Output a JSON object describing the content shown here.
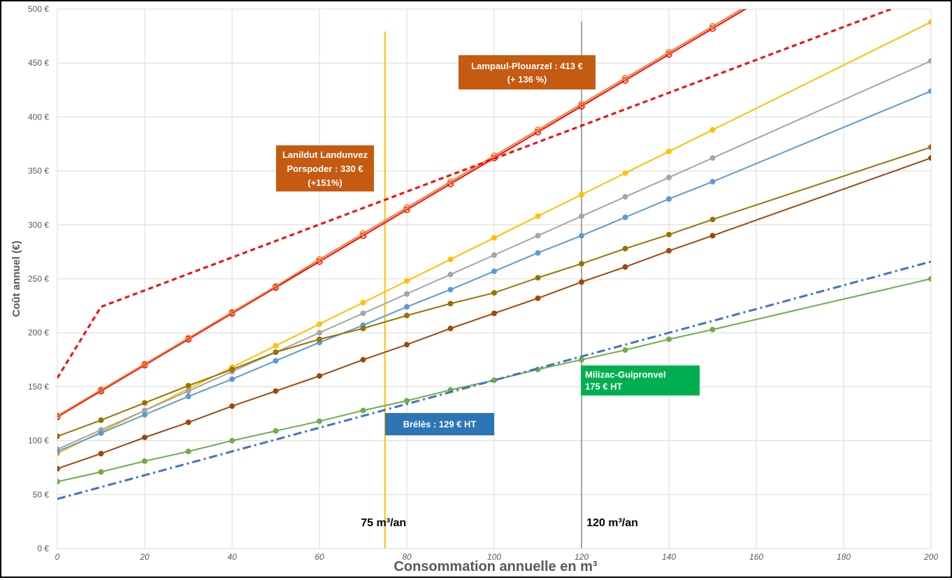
{
  "chart_data": {
    "type": "line",
    "xlabel": "Consommation annuelle en m³",
    "ylabel": "Coût annuel (€)",
    "xlim": [
      0,
      200
    ],
    "ylim": [
      0,
      500
    ],
    "x_ticks": [
      "0",
      "20",
      "40",
      "60",
      "80",
      "100",
      "120",
      "140",
      "160",
      "180",
      "200"
    ],
    "y_ticks": [
      "0 €",
      "50 €",
      "100 €",
      "150 €",
      "200 €",
      "250 €",
      "300 €",
      "350 €",
      "400 €",
      "450 €",
      "500 €"
    ],
    "grid": true,
    "series": [
      {
        "color": "#ff0000",
        "style": "solid",
        "marker": "open-circle",
        "x": [
          0,
          10,
          20,
          30,
          40,
          50,
          60,
          70,
          80,
          90,
          100,
          110,
          120,
          130,
          140,
          150,
          160
        ],
        "y": [
          122,
          146,
          170,
          194,
          218,
          242,
          266,
          290,
          314,
          338,
          362,
          386,
          410,
          434,
          458,
          482,
          506
        ]
      },
      {
        "color": "#ed7d31",
        "style": "solid",
        "marker": "open-circle",
        "x": [
          0,
          10,
          20,
          30,
          40,
          50,
          60,
          70,
          80,
          90,
          100,
          110,
          120,
          130,
          140,
          150,
          160
        ],
        "y": [
          123,
          147,
          171,
          195,
          219,
          243,
          268,
          292,
          316,
          340,
          364,
          388,
          412,
          436,
          460,
          484,
          508
        ]
      },
      {
        "color": "#ff0000",
        "style": "dashed",
        "marker": "none",
        "x": [
          0,
          10,
          200
        ],
        "y": [
          158,
          224,
          514
        ]
      },
      {
        "color": "#ffc000",
        "style": "solid",
        "marker": "dot",
        "x": [
          0,
          10,
          20,
          30,
          40,
          50,
          60,
          70,
          80,
          90,
          100,
          110,
          120,
          130,
          140,
          150,
          200
        ],
        "y": [
          88,
          108,
          128,
          148,
          168,
          188,
          208,
          228,
          248,
          268,
          288,
          308,
          328,
          348,
          368,
          388,
          488
        ]
      },
      {
        "color": "#a5a5a5",
        "style": "solid",
        "marker": "dot",
        "x": [
          0,
          10,
          20,
          30,
          40,
          50,
          60,
          70,
          80,
          90,
          100,
          110,
          120,
          130,
          140,
          150,
          200
        ],
        "y": [
          92,
          110,
          128,
          146,
          164,
          182,
          200,
          218,
          236,
          254,
          272,
          290,
          308,
          326,
          344,
          362,
          452
        ]
      },
      {
        "color": "#5b9bd5",
        "style": "solid",
        "marker": "dot",
        "x": [
          0,
          10,
          20,
          30,
          40,
          50,
          60,
          70,
          80,
          90,
          100,
          110,
          120,
          130,
          140,
          150,
          200
        ],
        "y": [
          90,
          107,
          124,
          141,
          157,
          174,
          191,
          207,
          224,
          240,
          257,
          274,
          290,
          307,
          324,
          340,
          424
        ]
      },
      {
        "color": "#997300",
        "style": "solid",
        "marker": "dot",
        "x": [
          0,
          10,
          20,
          30,
          40,
          50,
          60,
          70,
          80,
          90,
          100,
          110,
          120,
          130,
          140,
          150,
          200
        ],
        "y": [
          104,
          119,
          135,
          151,
          166,
          182,
          194,
          204,
          216,
          227,
          237,
          251,
          264,
          278,
          291,
          305,
          372
        ]
      },
      {
        "color": "#9e480e",
        "style": "solid",
        "marker": "dot",
        "x": [
          0,
          10,
          20,
          30,
          40,
          50,
          60,
          70,
          80,
          90,
          100,
          110,
          120,
          130,
          140,
          150,
          200
        ],
        "y": [
          74,
          88,
          103,
          117,
          132,
          146,
          160,
          175,
          189,
          204,
          218,
          232,
          247,
          261,
          276,
          290,
          362
        ]
      },
      {
        "color": "#70ad47",
        "style": "solid",
        "marker": "dot",
        "x": [
          0,
          10,
          20,
          30,
          40,
          50,
          60,
          70,
          80,
          90,
          100,
          110,
          120,
          130,
          140,
          150,
          200
        ],
        "y": [
          62,
          71,
          81,
          90,
          100,
          109,
          118,
          128,
          137,
          147,
          156,
          166,
          175,
          184,
          194,
          203,
          250
        ]
      },
      {
        "color": "#4472c4",
        "style": "dashdot",
        "marker": "none",
        "x": [
          0,
          200
        ],
        "y": [
          46,
          266
        ]
      }
    ],
    "vlines": [
      {
        "x": 75,
        "color": "#ffc000",
        "label": "75 m³/an"
      },
      {
        "x": 120,
        "color": "#a5a5a5",
        "label": "120 m³/an"
      }
    ],
    "annotations": [
      {
        "id": "lampaul",
        "lines": [
          "Lampaul-Plouarzel : 413 €",
          "(+ 136 %)"
        ],
        "bg": "#c55a11"
      },
      {
        "id": "lanildut",
        "lines": [
          "Lanildut Landunvez",
          "Porspoder : 330 €",
          "(+151%)"
        ],
        "bg": "#c55a11"
      },
      {
        "id": "milizac",
        "lines": [
          "Milizac-Guipronvel",
          "175 € HT"
        ],
        "bg": "#00b050"
      },
      {
        "id": "breles",
        "lines": [
          "Brélès : 129 € HT"
        ],
        "bg": "#2e75b6"
      }
    ]
  }
}
